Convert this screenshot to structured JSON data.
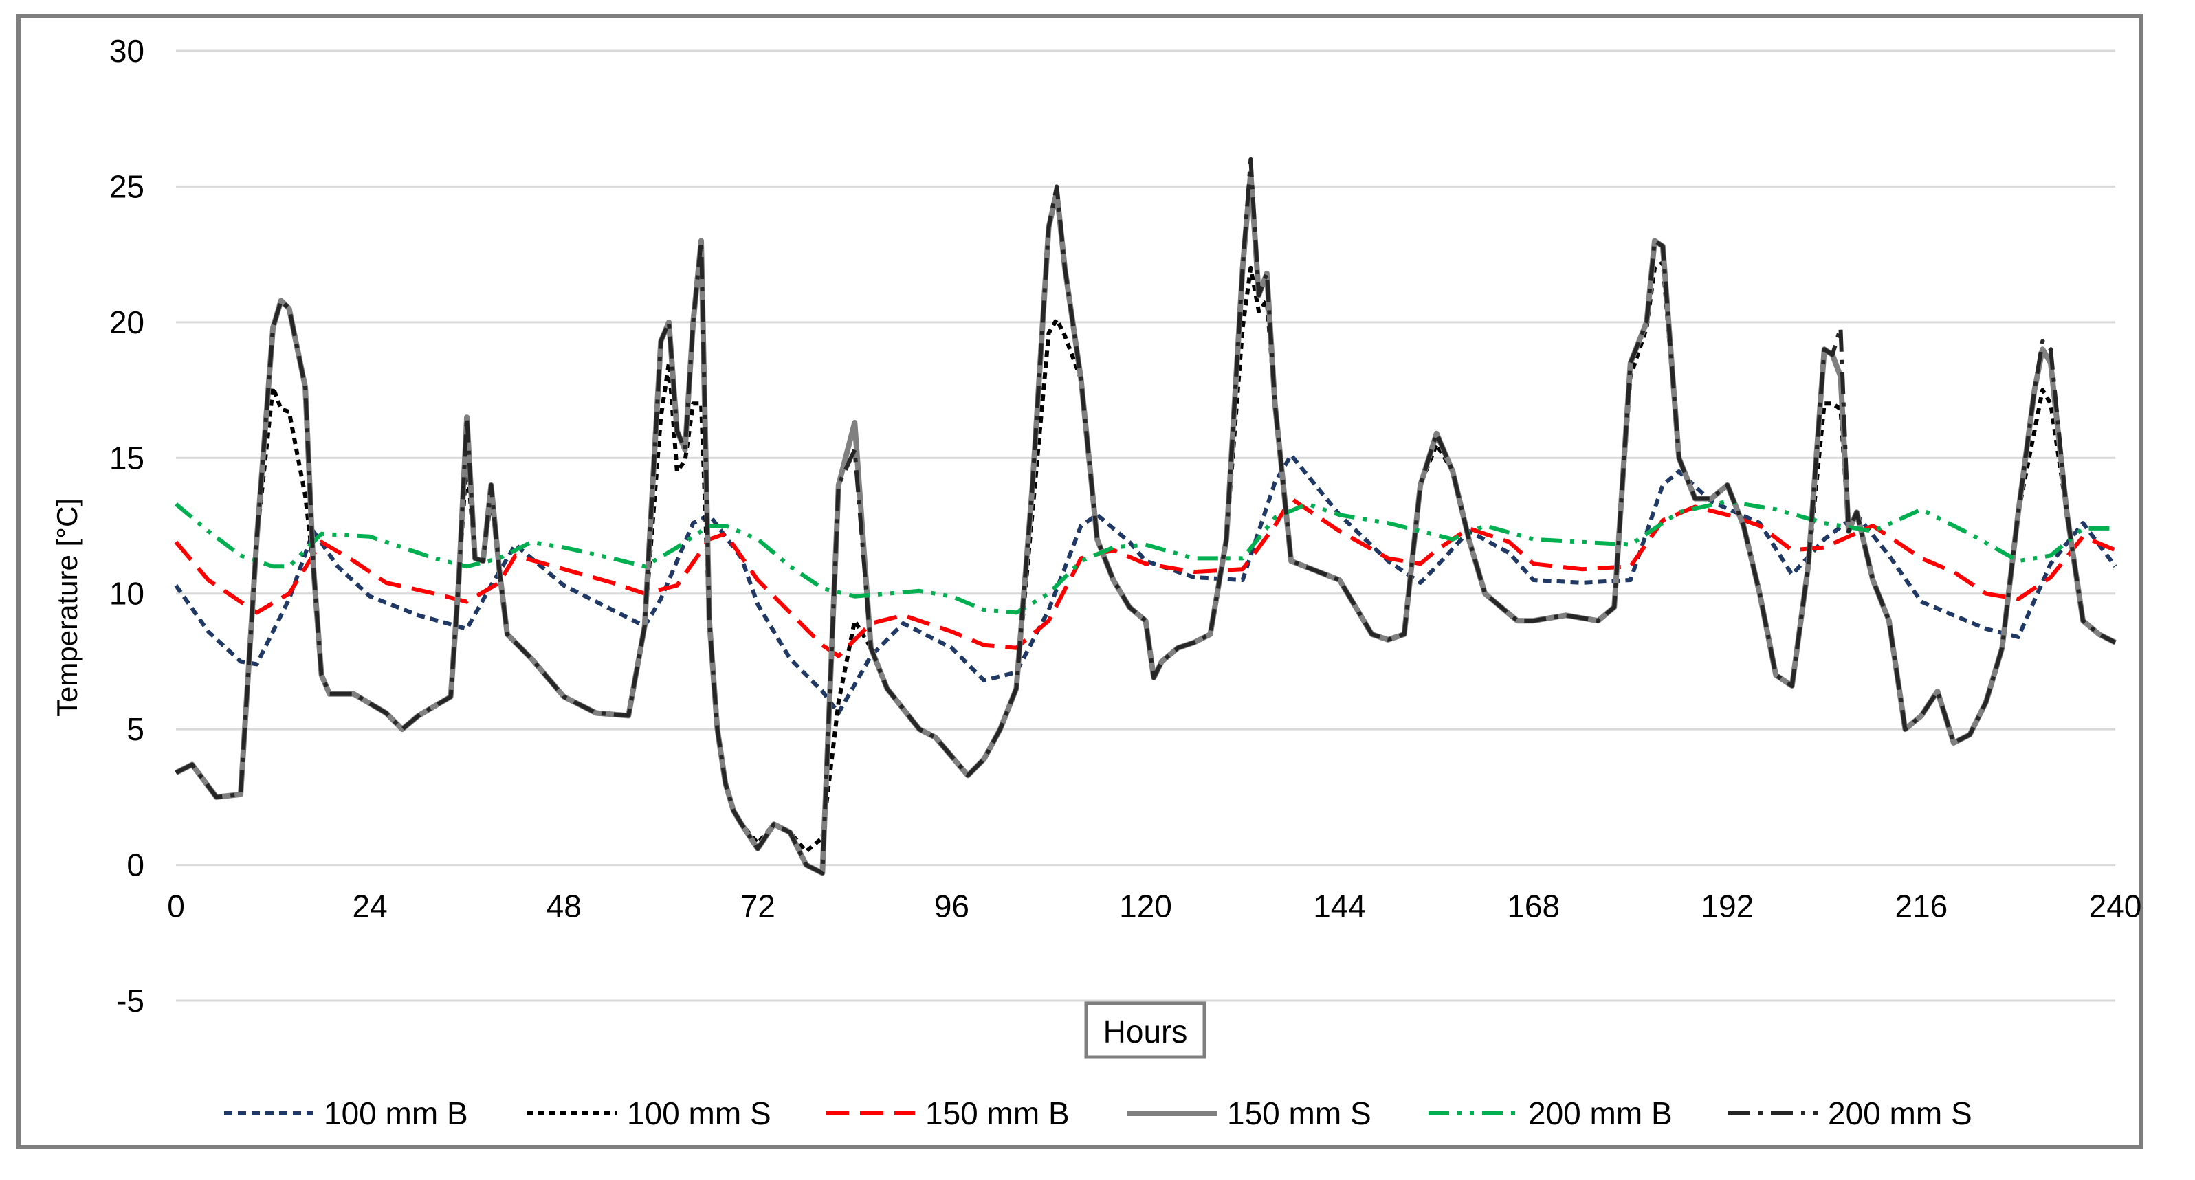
{
  "chart_data": {
    "type": "line",
    "title": "",
    "xlabel": "Hours",
    "ylabel": "Temperature [°C]",
    "xlim": [
      0,
      240
    ],
    "ylim": [
      -5,
      30
    ],
    "xticks": [
      "0",
      "24",
      "48",
      "72",
      "96",
      "120",
      "144",
      "168",
      "192",
      "216",
      "240"
    ],
    "yticks": [
      "30",
      "25",
      "20",
      "15",
      "10",
      "5",
      "0",
      "-5"
    ],
    "grid": true,
    "legend_position": "bottom",
    "series": [
      {
        "name": "100 mm B",
        "color": "#1f3864",
        "dash": "dash",
        "x": [
          0,
          4,
          8,
          10,
          14,
          17,
          20,
          24,
          30,
          36,
          39,
          42,
          48,
          54,
          58,
          60,
          64,
          66,
          70,
          72,
          76,
          80,
          82,
          86,
          90,
          96,
          100,
          104,
          108,
          112,
          114,
          118,
          120,
          126,
          132,
          136,
          138,
          144,
          150,
          154,
          156,
          160,
          165,
          168,
          174,
          180,
          184,
          186,
          190,
          196,
          200,
          204,
          208,
          212,
          216,
          220,
          224,
          228,
          232,
          236,
          240
        ],
        "y": [
          10.3,
          8.6,
          7.5,
          7.4,
          9.8,
          12.3,
          11.0,
          9.9,
          9.2,
          8.7,
          10.3,
          11.8,
          10.3,
          9.4,
          8.8,
          9.8,
          12.6,
          12.9,
          11.3,
          9.6,
          7.6,
          6.4,
          5.6,
          7.7,
          8.9,
          8.0,
          6.8,
          7.1,
          9.4,
          12.5,
          12.9,
          11.9,
          11.2,
          10.6,
          10.5,
          14.1,
          15.1,
          12.9,
          11.2,
          10.4,
          11.0,
          12.3,
          11.5,
          10.5,
          10.4,
          10.5,
          14.0,
          14.5,
          13.4,
          12.6,
          10.7,
          12.0,
          12.9,
          11.4,
          9.7,
          9.2,
          8.7,
          8.4,
          11.1,
          12.6,
          11.0
        ]
      },
      {
        "name": "100 mm S",
        "color": "#000000",
        "dash": "shortdash",
        "x": [
          0,
          2,
          5,
          8,
          10,
          12,
          13,
          14,
          16,
          17,
          18,
          19,
          22,
          26,
          28,
          30,
          34,
          35,
          36,
          37,
          38,
          39,
          40,
          41,
          44,
          48,
          52,
          56,
          58,
          60,
          61,
          62,
          63,
          64,
          65,
          66,
          67,
          68,
          69,
          70,
          72,
          74,
          76,
          78,
          80,
          82,
          84,
          86,
          88,
          92,
          94,
          96,
          98,
          100,
          102,
          104,
          106,
          108,
          109,
          110,
          112,
          114,
          116,
          118,
          120,
          121,
          122,
          124,
          126,
          128,
          130,
          132,
          133,
          134,
          135,
          136,
          138,
          144,
          148,
          150,
          152,
          154,
          156,
          158,
          160,
          162,
          164,
          166,
          168,
          172,
          176,
          178,
          180,
          182,
          183,
          184,
          186,
          188,
          190,
          192,
          194,
          196,
          198,
          200,
          202,
          204,
          205,
          206,
          207,
          208,
          210,
          212,
          214,
          216,
          218,
          220,
          222,
          224,
          226,
          228,
          230,
          231,
          232,
          234,
          236,
          238,
          240
        ],
        "y": [
          3.4,
          3.7,
          2.5,
          2.6,
          12,
          17.6,
          16.8,
          16.7,
          13.6,
          11.0,
          7.0,
          6.3,
          6.3,
          5.6,
          5.0,
          5.5,
          6.2,
          10.5,
          15.0,
          11.3,
          11.2,
          13.5,
          10.9,
          8.5,
          7.6,
          6.2,
          5.6,
          5.5,
          8.8,
          16.5,
          18.5,
          14.5,
          14.9,
          17.0,
          17.0,
          9.0,
          5.0,
          3.0,
          2.0,
          1.5,
          0.8,
          1.5,
          1.2,
          0.5,
          1.0,
          6.0,
          9.0,
          8.0,
          6.5,
          5.0,
          4.7,
          4.0,
          3.3,
          3.9,
          5.0,
          6.5,
          13.0,
          19.6,
          20.1,
          19.5,
          17.9,
          12.0,
          10.5,
          9.5,
          9.0,
          6.9,
          7.5,
          8.0,
          8.2,
          8.5,
          12.0,
          19.8,
          22.0,
          20.4,
          20.8,
          17.0,
          11.2,
          10.5,
          8.5,
          8.3,
          8.5,
          14.0,
          15.5,
          14.5,
          12.0,
          10.0,
          9.5,
          9.0,
          9.0,
          9.2,
          9.0,
          9.5,
          18.0,
          19.8,
          22.0,
          22.2,
          15.0,
          13.5,
          13.5,
          14.0,
          12.5,
          10.0,
          7.0,
          6.6,
          11.0,
          17.0,
          17.0,
          16.8,
          12.3,
          13.0,
          10.5,
          9.0,
          5.0,
          5.5,
          6.4,
          4.5,
          4.8,
          6.0,
          8.0,
          13.0,
          16.0,
          17.5,
          17.0,
          13.0,
          9.0,
          8.5,
          8.2
        ]
      },
      {
        "name": "150 mm B",
        "color": "#ff0000",
        "dash": "longdash",
        "x": [
          0,
          4,
          8,
          10,
          14,
          18,
          22,
          26,
          32,
          36,
          40,
          42,
          48,
          54,
          58,
          62,
          66,
          68,
          72,
          76,
          80,
          82,
          86,
          90,
          96,
          100,
          104,
          108,
          112,
          116,
          120,
          126,
          132,
          136,
          138,
          144,
          150,
          154,
          156,
          160,
          165,
          168,
          174,
          180,
          184,
          188,
          192,
          196,
          200,
          204,
          210,
          216,
          220,
          224,
          228,
          232,
          236,
          240
        ],
        "y": [
          11.9,
          10.5,
          9.7,
          9.3,
          10.0,
          11.9,
          11.2,
          10.4,
          10.0,
          9.7,
          10.4,
          11.4,
          10.9,
          10.4,
          10.0,
          10.3,
          12.0,
          12.2,
          10.5,
          9.3,
          8.1,
          7.7,
          8.9,
          9.2,
          8.6,
          8.1,
          8.0,
          9.0,
          11.3,
          11.6,
          11.1,
          10.8,
          10.9,
          12.5,
          13.5,
          12.3,
          11.3,
          11.1,
          11.6,
          12.4,
          11.9,
          11.1,
          10.9,
          11.0,
          12.7,
          13.2,
          12.9,
          12.5,
          11.6,
          11.7,
          12.5,
          11.3,
          10.8,
          10.0,
          9.8,
          10.6,
          12.1,
          11.6
        ]
      },
      {
        "name": "150 mm S",
        "color": "#808080",
        "dash": "solid",
        "x": [
          0,
          2,
          5,
          8,
          10,
          12,
          13,
          14,
          16,
          17,
          18,
          19,
          22,
          26,
          28,
          30,
          34,
          35,
          36,
          37,
          38,
          39,
          40,
          41,
          44,
          48,
          52,
          56,
          58,
          60,
          61,
          62,
          63,
          64,
          65,
          66,
          67,
          68,
          69,
          70,
          72,
          74,
          76,
          78,
          80,
          82,
          84,
          86,
          88,
          92,
          94,
          96,
          98,
          100,
          102,
          104,
          106,
          108,
          109,
          110,
          112,
          114,
          116,
          118,
          120,
          121,
          122,
          124,
          126,
          128,
          130,
          132,
          133,
          134,
          135,
          136,
          138,
          144,
          148,
          150,
          152,
          154,
          156,
          158,
          160,
          162,
          164,
          166,
          168,
          172,
          176,
          178,
          180,
          182,
          183,
          184,
          186,
          188,
          190,
          192,
          194,
          196,
          198,
          200,
          202,
          204,
          205,
          206,
          207,
          208,
          210,
          212,
          214,
          216,
          218,
          220,
          222,
          224,
          226,
          228,
          230,
          231,
          232,
          234,
          236,
          238,
          240
        ],
        "y": [
          3.4,
          3.7,
          2.5,
          2.6,
          12,
          19.8,
          20.8,
          20.5,
          17.6,
          11.0,
          7.0,
          6.3,
          6.3,
          5.6,
          5.0,
          5.5,
          6.2,
          10.5,
          16.5,
          11.3,
          11.2,
          14.0,
          10.9,
          8.5,
          7.6,
          6.2,
          5.6,
          5.5,
          8.8,
          19.3,
          20.0,
          16.0,
          15.3,
          20.0,
          23.0,
          9.0,
          5.0,
          3.0,
          2.0,
          1.5,
          0.6,
          1.5,
          1.2,
          0.0,
          -0.3,
          14.0,
          16.3,
          8.0,
          6.5,
          5.0,
          4.7,
          4.0,
          3.3,
          3.9,
          5.0,
          6.5,
          14.0,
          23.5,
          24.8,
          22.0,
          17.9,
          12.0,
          10.5,
          9.5,
          9.0,
          6.9,
          7.5,
          8.0,
          8.2,
          8.5,
          12.0,
          22.0,
          25.5,
          21.0,
          21.8,
          17.0,
          11.2,
          10.5,
          8.5,
          8.3,
          8.5,
          14.0,
          15.9,
          14.5,
          12.0,
          10.0,
          9.5,
          9.0,
          9.0,
          9.2,
          9.0,
          9.5,
          18.5,
          20.0,
          23.0,
          22.8,
          15.0,
          13.5,
          13.5,
          14.0,
          12.5,
          10.0,
          7.0,
          6.6,
          11.0,
          19.0,
          18.8,
          18.0,
          12.3,
          13.0,
          10.5,
          9.0,
          5.0,
          5.5,
          6.4,
          4.5,
          4.8,
          6.0,
          8.0,
          13.0,
          17.5,
          19.0,
          18.5,
          13.0,
          9.0,
          8.5,
          8.2
        ]
      },
      {
        "name": "200 mm B",
        "color": "#00b050",
        "dash": "dashdotdot",
        "x": [
          0,
          4,
          8,
          12,
          14,
          18,
          24,
          32,
          36,
          40,
          44,
          48,
          54,
          58,
          62,
          66,
          68,
          72,
          76,
          80,
          84,
          88,
          92,
          96,
          100,
          104,
          108,
          112,
          116,
          120,
          126,
          132,
          136,
          140,
          144,
          150,
          154,
          158,
          162,
          168,
          174,
          180,
          186,
          192,
          198,
          204,
          210,
          216,
          222,
          228,
          232,
          236,
          240
        ],
        "y": [
          13.3,
          12.3,
          11.4,
          11.0,
          11.0,
          12.2,
          12.1,
          11.3,
          11.0,
          11.3,
          11.9,
          11.7,
          11.3,
          11.0,
          11.7,
          12.5,
          12.5,
          12.0,
          11.0,
          10.2,
          9.9,
          10.0,
          10.1,
          9.9,
          9.4,
          9.3,
          10.0,
          11.2,
          11.7,
          11.8,
          11.3,
          11.3,
          12.8,
          13.3,
          12.9,
          12.6,
          12.3,
          12.0,
          12.5,
          12.0,
          11.9,
          11.8,
          13.0,
          13.4,
          13.1,
          12.6,
          12.3,
          13.1,
          12.2,
          11.2,
          11.4,
          12.4,
          12.4
        ]
      },
      {
        "name": "200 mm S",
        "color": "#262626",
        "dash": "dashdot",
        "x": [
          0,
          2,
          5,
          8,
          10,
          12,
          13,
          14,
          16,
          17,
          18,
          19,
          22,
          26,
          28,
          30,
          34,
          35,
          36,
          37,
          38,
          39,
          40,
          41,
          44,
          48,
          52,
          56,
          58,
          60,
          61,
          62,
          63,
          64,
          65,
          66,
          67,
          68,
          69,
          70,
          72,
          74,
          76,
          78,
          80,
          82,
          84,
          86,
          88,
          92,
          94,
          96,
          98,
          100,
          102,
          104,
          106,
          108,
          109,
          110,
          112,
          114,
          116,
          118,
          120,
          121,
          122,
          124,
          126,
          128,
          130,
          132,
          133,
          134,
          135,
          136,
          138,
          144,
          148,
          150,
          152,
          154,
          156,
          158,
          160,
          162,
          164,
          166,
          168,
          172,
          176,
          178,
          180,
          182,
          183,
          184,
          186,
          188,
          190,
          192,
          194,
          196,
          198,
          200,
          202,
          204,
          205,
          206,
          207,
          208,
          210,
          212,
          214,
          216,
          218,
          220,
          222,
          224,
          226,
          228,
          230,
          231,
          232,
          234,
          236,
          238,
          240
        ],
        "y": [
          3.4,
          3.7,
          2.5,
          2.6,
          12,
          19.8,
          20.8,
          20.5,
          17.6,
          11.0,
          7.0,
          6.3,
          6.3,
          5.6,
          5.0,
          5.5,
          6.2,
          10.5,
          16.5,
          11.3,
          11.2,
          14.0,
          10.9,
          8.5,
          7.6,
          6.2,
          5.6,
          5.5,
          8.8,
          19.3,
          20.0,
          16.0,
          15.3,
          20.0,
          23.0,
          9.0,
          5.0,
          3.0,
          2.0,
          1.5,
          0.6,
          1.5,
          1.2,
          0.0,
          -0.3,
          14.0,
          15.3,
          8.0,
          6.5,
          5.0,
          4.7,
          4.0,
          3.3,
          3.9,
          5.0,
          6.5,
          14.0,
          23.5,
          25.0,
          22.0,
          17.9,
          12.0,
          10.5,
          9.5,
          9.0,
          6.9,
          7.5,
          8.0,
          8.2,
          8.5,
          12.0,
          22.0,
          26.0,
          21.0,
          21.8,
          17.0,
          11.2,
          10.5,
          8.5,
          8.3,
          8.5,
          14.0,
          15.9,
          14.5,
          12.0,
          10.0,
          9.5,
          9.0,
          9.0,
          9.2,
          9.0,
          9.5,
          18.5,
          20.0,
          23.0,
          22.8,
          15.0,
          13.5,
          13.5,
          14.0,
          12.5,
          10.0,
          7.0,
          6.6,
          11.0,
          19.0,
          18.8,
          19.8,
          12.3,
          13.0,
          10.5,
          9.0,
          5.0,
          5.5,
          6.4,
          4.5,
          4.8,
          6.0,
          8.0,
          13.0,
          17.5,
          19.3,
          19.0,
          13.0,
          9.0,
          8.5,
          8.2
        ]
      }
    ]
  }
}
